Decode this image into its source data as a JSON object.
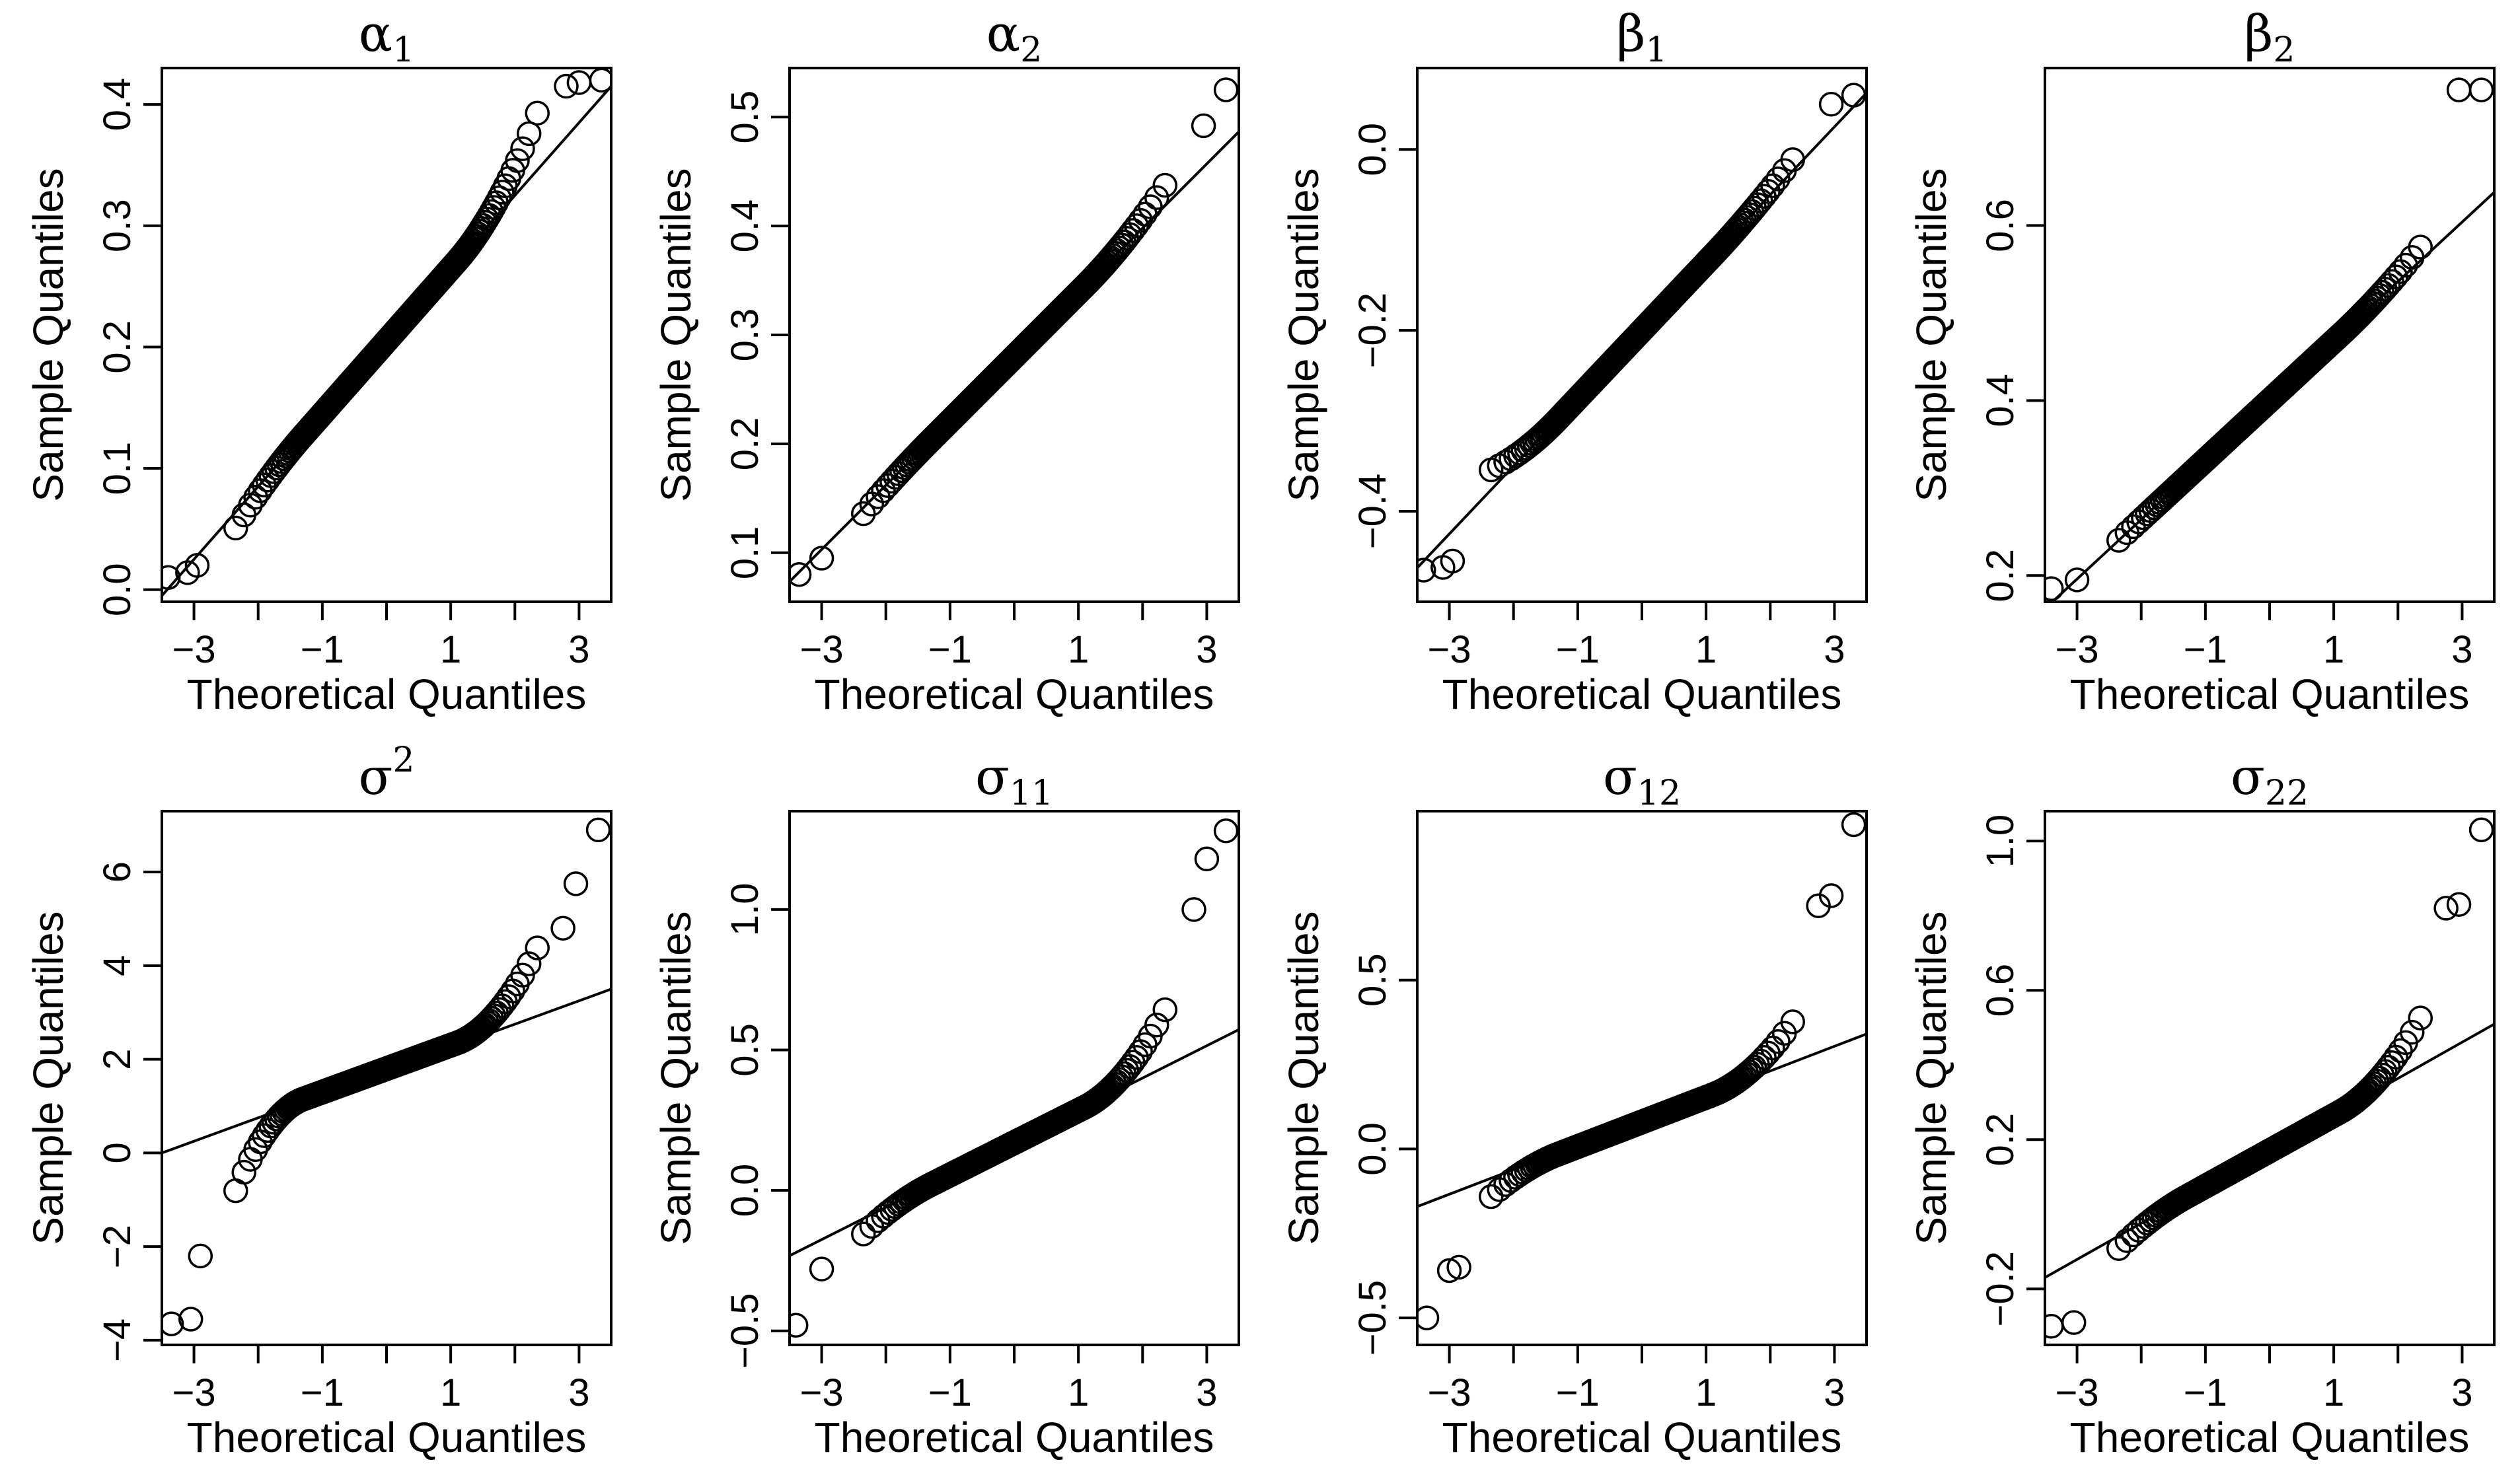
{
  "colors": {
    "ink": "#000000",
    "background": "#ffffff"
  },
  "chart_data": [
    {
      "type": "scatter",
      "title": "α",
      "title_sub": "1",
      "title_sup": "",
      "xlabel": "Theoretical Quantiles",
      "ylabel": "Sample Quantiles",
      "xlim": [
        -3.5,
        3.5
      ],
      "xticks": [
        -3,
        -2,
        -1,
        0,
        1,
        2,
        3
      ],
      "xtick_labels": [
        "−3",
        "",
        "−1",
        "",
        "1",
        "",
        "3"
      ],
      "ylim": [
        -0.01,
        0.43
      ],
      "yticks": [
        0.0,
        0.1,
        0.2,
        0.3,
        0.4
      ],
      "ytick_labels": [
        "0.0",
        "0.1",
        "0.2",
        "0.3",
        "0.4"
      ],
      "center": 0.205,
      "spread": 0.06,
      "tail_low": 0.012,
      "tail_high": 0.03,
      "line": {
        "slope": 0.06,
        "intercept": 0.205
      },
      "extremes_low": [
        [
          -3.4,
          0.01
        ],
        [
          -3.1,
          0.014
        ],
        [
          -2.95,
          0.02
        ]
      ],
      "extremes_high": [
        [
          2.8,
          0.415
        ],
        [
          3.0,
          0.418
        ],
        [
          3.35,
          0.42
        ]
      ]
    },
    {
      "type": "scatter",
      "title": "α",
      "title_sub": "2",
      "title_sup": "",
      "xlabel": "Theoretical Quantiles",
      "ylabel": "Sample Quantiles",
      "xlim": [
        -3.5,
        3.5
      ],
      "xticks": [
        -3,
        -2,
        -1,
        0,
        1,
        2,
        3
      ],
      "xtick_labels": [
        "−3",
        "",
        "−1",
        "",
        "1",
        "",
        "3"
      ],
      "ylim": [
        0.055,
        0.545
      ],
      "yticks": [
        0.1,
        0.2,
        0.3,
        0.4,
        0.5
      ],
      "ytick_labels": [
        "0.1",
        "0.2",
        "0.3",
        "0.4",
        "0.5"
      ],
      "center": 0.28,
      "spread": 0.059,
      "tail_low": 0.005,
      "tail_high": 0.012,
      "line": {
        "slope": 0.059,
        "intercept": 0.28
      },
      "extremes_low": [
        [
          -3.35,
          0.08
        ],
        [
          -3.0,
          0.095
        ]
      ],
      "extremes_high": [
        [
          2.95,
          0.492
        ],
        [
          3.3,
          0.525
        ]
      ]
    },
    {
      "type": "scatter",
      "title": "β",
      "title_sub": "1",
      "title_sup": "",
      "xlabel": "Theoretical Quantiles",
      "ylabel": "Sample Quantiles",
      "xlim": [
        -3.5,
        3.5
      ],
      "xticks": [
        -3,
        -2,
        -1,
        0,
        1,
        2,
        3
      ],
      "xtick_labels": [
        "−3",
        "",
        "−1",
        "",
        "1",
        "",
        "3"
      ],
      "ylim": [
        -0.5,
        0.09
      ],
      "yticks": [
        -0.4,
        -0.2,
        0.0
      ],
      "ytick_labels": [
        "−0.4",
        "−0.2",
        "0.0"
      ],
      "center": -0.2,
      "spread": 0.075,
      "tail_low": -0.02,
      "tail_high": 0.008,
      "line": {
        "slope": 0.075,
        "intercept": -0.2
      },
      "extremes_low": [
        [
          -3.4,
          -0.465
        ],
        [
          -3.1,
          -0.462
        ],
        [
          -2.95,
          -0.455
        ]
      ],
      "extremes_high": [
        [
          2.95,
          0.05
        ],
        [
          3.3,
          0.06
        ]
      ]
    },
    {
      "type": "scatter",
      "title": "β",
      "title_sub": "2",
      "title_sup": "",
      "xlabel": "Theoretical Quantiles",
      "ylabel": "Sample Quantiles",
      "xlim": [
        -3.5,
        3.5
      ],
      "xticks": [
        -3,
        -2,
        -1,
        0,
        1,
        2,
        3
      ],
      "xtick_labels": [
        "−3",
        "",
        "−1",
        "",
        "1",
        "",
        "3"
      ],
      "ylim": [
        0.17,
        0.78
      ],
      "yticks": [
        0.2,
        0.4,
        0.6
      ],
      "ytick_labels": [
        "0.2",
        "0.4",
        "0.6"
      ],
      "center": 0.4,
      "spread": 0.068,
      "tail_low": 0.0,
      "tail_high": 0.01,
      "line": {
        "slope": 0.068,
        "intercept": 0.4
      },
      "extremes_low": [
        [
          -3.4,
          0.185
        ],
        [
          -3.0,
          0.195
        ]
      ],
      "extremes_high": [
        [
          2.95,
          0.755
        ],
        [
          3.3,
          0.755
        ]
      ]
    },
    {
      "type": "scatter",
      "title": "σ",
      "title_sub": "",
      "title_sup": "2",
      "xlabel": "Theoretical Quantiles",
      "ylabel": "Sample Quantiles",
      "xlim": [
        -3.5,
        3.5
      ],
      "xticks": [
        -3,
        -2,
        -1,
        0,
        1,
        2,
        3
      ],
      "xtick_labels": [
        "−3",
        "",
        "−1",
        "",
        "1",
        "",
        "3"
      ],
      "ylim": [
        -4.1,
        7.3
      ],
      "yticks": [
        -4,
        -2,
        0,
        2,
        4,
        6
      ],
      "ytick_labels": [
        "−4",
        "−2",
        "0",
        "2",
        "4",
        "6"
      ],
      "center": 1.8,
      "spread": 0.5,
      "tail_low": 1.3,
      "tail_high": 0.9,
      "line": {
        "slope": 0.5,
        "intercept": 1.75
      },
      "extremes_low": [
        [
          -3.35,
          -3.65
        ],
        [
          -3.05,
          -3.55
        ],
        [
          -2.9,
          -2.2
        ]
      ],
      "extremes_high": [
        [
          2.75,
          4.8
        ],
        [
          2.95,
          5.75
        ],
        [
          3.3,
          6.9
        ]
      ]
    },
    {
      "type": "scatter",
      "title": "σ",
      "title_sub": "11",
      "title_sup": "",
      "xlabel": "Theoretical Quantiles",
      "ylabel": "Sample Quantiles",
      "xlim": [
        -3.5,
        3.5
      ],
      "xticks": [
        -3,
        -2,
        -1,
        0,
        1,
        2,
        3
      ],
      "xtick_labels": [
        "−3",
        "",
        "−1",
        "",
        "1",
        "",
        "3"
      ],
      "ylim": [
        -0.55,
        1.35
      ],
      "yticks": [
        -0.5,
        0.0,
        0.5,
        1.0
      ],
      "ytick_labels": [
        "−0.5",
        "0.0",
        "0.5",
        "1.0"
      ],
      "center": 0.17,
      "spread": 0.115,
      "tail_low": 0.05,
      "tail_high": 0.13,
      "line": {
        "slope": 0.115,
        "intercept": 0.17
      },
      "extremes_low": [
        [
          -3.4,
          -0.48
        ],
        [
          -3.0,
          -0.28
        ]
      ],
      "extremes_high": [
        [
          2.8,
          1.0
        ],
        [
          3.0,
          1.18
        ],
        [
          3.3,
          1.28
        ]
      ]
    },
    {
      "type": "scatter",
      "title": "σ",
      "title_sub": "12",
      "title_sup": "",
      "xlabel": "Theoretical Quantiles",
      "ylabel": "Sample Quantiles",
      "xlim": [
        -3.5,
        3.5
      ],
      "xticks": [
        -3,
        -2,
        -1,
        0,
        1,
        2,
        3
      ],
      "xtick_labels": [
        "−3",
        "",
        "−1",
        "",
        "1",
        "",
        "3"
      ],
      "ylim": [
        -0.58,
        1.0
      ],
      "yticks": [
        -0.5,
        0.0,
        0.5
      ],
      "ytick_labels": [
        "−0.5",
        "0.0",
        "0.5"
      ],
      "center": 0.08,
      "spread": 0.073,
      "tail_low": 0.045,
      "tail_high": 0.08,
      "line": {
        "slope": 0.073,
        "intercept": 0.085
      },
      "extremes_low": [
        [
          -3.35,
          -0.5
        ],
        [
          -3.0,
          -0.36
        ],
        [
          -2.85,
          -0.35
        ]
      ],
      "extremes_high": [
        [
          2.75,
          0.72
        ],
        [
          2.95,
          0.75
        ],
        [
          3.3,
          0.96
        ]
      ]
    },
    {
      "type": "scatter",
      "title": "σ",
      "title_sub": "22",
      "title_sup": "",
      "xlabel": "Theoretical Quantiles",
      "ylabel": "Sample Quantiles",
      "xlim": [
        -3.5,
        3.5
      ],
      "xticks": [
        -3,
        -2,
        -1,
        0,
        1,
        2,
        3
      ],
      "xtick_labels": [
        "−3",
        "",
        "−1",
        "",
        "1",
        "",
        "3"
      ],
      "ylim": [
        -0.35,
        1.08
      ],
      "yticks": [
        -0.2,
        0.2,
        0.6,
        1.0
      ],
      "ytick_labels": [
        "−0.2",
        "0.2",
        "0.6",
        "1.0"
      ],
      "center": 0.17,
      "spread": 0.095,
      "tail_low": 0.035,
      "tail_high": 0.085,
      "line": {
        "slope": 0.097,
        "intercept": 0.17
      },
      "extremes_low": [
        [
          -3.4,
          -0.3
        ],
        [
          -3.05,
          -0.29
        ]
      ],
      "extremes_high": [
        [
          2.75,
          0.82
        ],
        [
          2.95,
          0.83
        ],
        [
          3.3,
          1.03
        ]
      ]
    }
  ]
}
